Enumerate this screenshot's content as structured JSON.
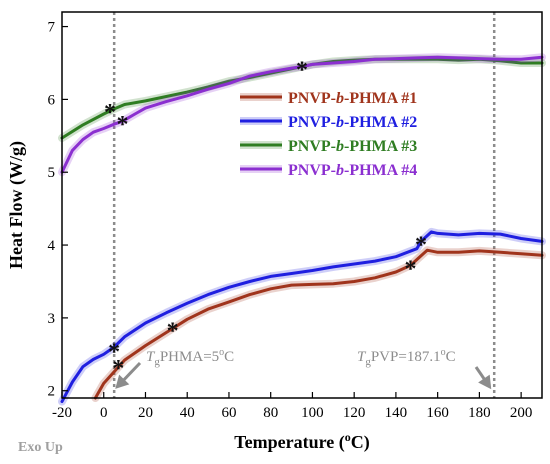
{
  "chart_data": {
    "type": "line",
    "xlabel": "Temperature (°C)",
    "xlabel_parts": {
      "main": "Temperature (",
      "sup": "o",
      "tail": "C)"
    },
    "ylabel": "Heat Flow (W/g)",
    "xlim": [
      -20,
      210
    ],
    "ylim": [
      1.9,
      7.2
    ],
    "xticks": [
      -20,
      0,
      20,
      40,
      60,
      80,
      100,
      120,
      140,
      160,
      180,
      200
    ],
    "yticks": [
      2,
      3,
      4,
      5,
      6,
      7
    ],
    "grid": false,
    "legend_position": "center-right",
    "footer_text": "Exo Up",
    "series": [
      {
        "name": "PNVP-b-PHMA #1",
        "name_parts": [
          "PNVP-",
          "b",
          "-PHMA #1"
        ],
        "color": "#a0341c",
        "x": [
          -4,
          0,
          10,
          20,
          30,
          40,
          50,
          60,
          70,
          80,
          90,
          100,
          110,
          120,
          130,
          140,
          147,
          150,
          155,
          160,
          170,
          180,
          190,
          200,
          210
        ],
        "y": [
          1.9,
          2.1,
          2.42,
          2.62,
          2.8,
          2.98,
          3.12,
          3.22,
          3.32,
          3.4,
          3.45,
          3.46,
          3.47,
          3.5,
          3.55,
          3.63,
          3.72,
          3.8,
          3.93,
          3.9,
          3.9,
          3.92,
          3.9,
          3.88,
          3.86
        ],
        "tg_marker": [
          [
            7,
            2.35
          ],
          [
            33,
            2.87
          ],
          [
            147,
            3.72
          ]
        ]
      },
      {
        "name": "PNVP-b-PHMA #2",
        "name_parts": [
          "PNVP-",
          "b",
          "-PHMA #2"
        ],
        "color": "#1f1fe0",
        "x": [
          -20,
          -15,
          -10,
          -5,
          0,
          5,
          10,
          20,
          30,
          40,
          50,
          60,
          70,
          80,
          90,
          100,
          110,
          120,
          130,
          140,
          150,
          152,
          157,
          160,
          170,
          180,
          190,
          200,
          210
        ],
        "y": [
          1.85,
          2.12,
          2.33,
          2.43,
          2.5,
          2.6,
          2.74,
          2.93,
          3.07,
          3.2,
          3.32,
          3.42,
          3.5,
          3.57,
          3.61,
          3.65,
          3.7,
          3.74,
          3.78,
          3.84,
          3.95,
          4.05,
          4.18,
          4.16,
          4.14,
          4.16,
          4.15,
          4.09,
          4.05
        ],
        "tg_marker": [
          [
            5,
            2.58
          ],
          [
            152,
            4.05
          ]
        ]
      },
      {
        "name": "PNVP-b-PHMA #3",
        "name_parts": [
          "PNVP-",
          "b",
          "-PHMA #3"
        ],
        "color": "#2f7d22",
        "x": [
          -20,
          -10,
          0,
          5,
          10,
          20,
          30,
          40,
          50,
          60,
          70,
          80,
          90,
          100,
          110,
          120,
          130,
          140,
          150,
          160,
          170,
          180,
          190,
          200,
          210
        ],
        "y": [
          5.47,
          5.65,
          5.8,
          5.87,
          5.93,
          5.98,
          6.04,
          6.1,
          6.17,
          6.25,
          6.3,
          6.36,
          6.42,
          6.48,
          6.52,
          6.54,
          6.55,
          6.55,
          6.55,
          6.55,
          6.54,
          6.55,
          6.53,
          6.5,
          6.5
        ],
        "tg_marker": [
          [
            3,
            5.87
          ]
        ]
      },
      {
        "name": "PNVP-b-PHMA #4",
        "name_parts": [
          "PNVP-",
          "b",
          "-PHMA #4"
        ],
        "color": "#8b2fd0",
        "x": [
          -20,
          -15,
          -10,
          -5,
          0,
          5,
          9,
          15,
          20,
          30,
          40,
          50,
          60,
          70,
          80,
          90,
          95,
          100,
          110,
          120,
          130,
          140,
          150,
          160,
          170,
          180,
          190,
          200,
          210
        ],
        "y": [
          5.0,
          5.3,
          5.45,
          5.55,
          5.6,
          5.66,
          5.7,
          5.8,
          5.88,
          5.97,
          6.05,
          6.14,
          6.22,
          6.32,
          6.38,
          6.43,
          6.45,
          6.48,
          6.5,
          6.52,
          6.55,
          6.56,
          6.57,
          6.58,
          6.57,
          6.56,
          6.55,
          6.55,
          6.58
        ],
        "tg_marker": [
          [
            9,
            5.7
          ],
          [
            95,
            6.45
          ]
        ]
      }
    ],
    "reference_lines": [
      {
        "x": 5,
        "label_sub": "g",
        "label_rest": "PHMA=5",
        "label_sup": "o",
        "label_end": "C",
        "label_prefix": "T"
      },
      {
        "x": 187.1,
        "label_sub": "g",
        "label_rest": "PVP=187.1",
        "label_sup": "o",
        "label_end": "C",
        "label_prefix": "T"
      }
    ]
  }
}
